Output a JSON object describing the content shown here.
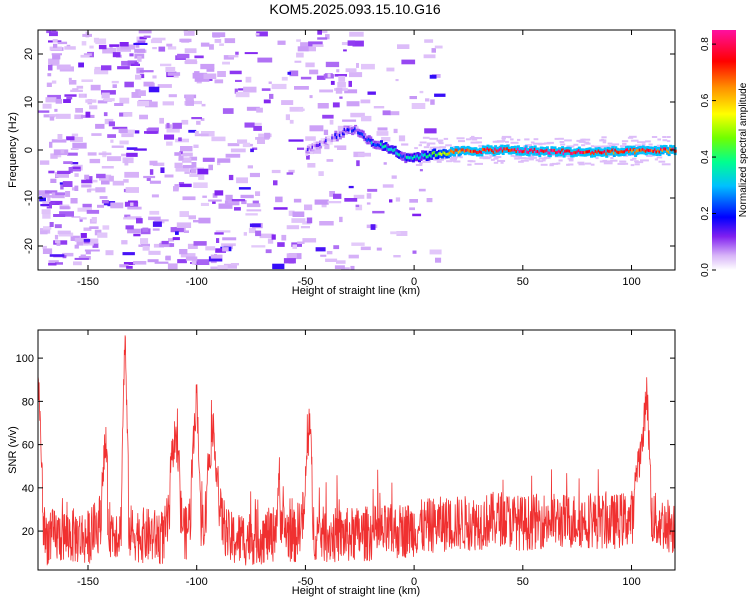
{
  "figure_title": "KOM5.2025.093.15.10.G16",
  "colors": {
    "snr_line": "#f03030",
    "frame": "#000000",
    "spectrogram_background": "#ffffff"
  },
  "chart_data": [
    {
      "type": "heatmap",
      "title": "KOM5.2025.093.15.10.G16",
      "xlabel": "Height of straight line (km)",
      "ylabel": "Frequency (Hz)",
      "xlim": [
        -173,
        120
      ],
      "ylim": [
        -25,
        25
      ],
      "x_ticks": [
        -150,
        -100,
        -50,
        0,
        50,
        100
      ],
      "x_tick_labels": [
        "-150",
        "-100",
        "-50",
        "0",
        "50",
        "100"
      ],
      "y_ticks": [
        -20,
        -10,
        0,
        10,
        20
      ],
      "y_tick_labels": [
        "-20",
        "-10",
        "0",
        "10",
        "20"
      ],
      "colorbar": {
        "label": "Normalized spectral amplitude",
        "range": [
          0.0,
          0.85
        ],
        "ticks": [
          0.0,
          0.2,
          0.4,
          0.6,
          0.8
        ],
        "tick_labels": [
          "0.0",
          "0.2",
          "0.4",
          "0.6",
          "0.8"
        ],
        "colormap": "rainbow (white → violet → blue → cyan → green → yellow → orange → red → magenta)"
      },
      "signal_track": {
        "description": "Narrow high-amplitude band near 0 Hz for heights above about -25 km; diffuse noise below",
        "points": [
          {
            "x": -50,
            "y": 0.0,
            "amplitude": 0.08
          },
          {
            "x": -40,
            "y": 2.0,
            "amplitude": 0.1
          },
          {
            "x": -30,
            "y": 4.5,
            "amplitude": 0.12
          },
          {
            "x": -25,
            "y": 3.5,
            "amplitude": 0.15
          },
          {
            "x": -20,
            "y": 1.5,
            "amplitude": 0.25
          },
          {
            "x": -10,
            "y": 0.0,
            "amplitude": 0.35
          },
          {
            "x": -5,
            "y": -1.5,
            "amplitude": 0.3
          },
          {
            "x": 0,
            "y": -1.5,
            "amplitude": 0.3
          },
          {
            "x": 10,
            "y": -0.8,
            "amplitude": 0.45
          },
          {
            "x": 20,
            "y": -0.3,
            "amplitude": 0.7
          },
          {
            "x": 40,
            "y": 0.0,
            "amplitude": 0.75
          },
          {
            "x": 60,
            "y": -0.3,
            "amplitude": 0.8
          },
          {
            "x": 80,
            "y": -0.5,
            "amplitude": 0.75
          },
          {
            "x": 100,
            "y": -0.3,
            "amplitude": 0.7
          },
          {
            "x": 120,
            "y": 0.0,
            "amplitude": 0.72
          }
        ]
      }
    },
    {
      "type": "line",
      "xlabel": "Height of straight line (km)",
      "ylabel": "SNR (v/v)",
      "xlim": [
        -173,
        120
      ],
      "ylim": [
        2,
        113
      ],
      "x_ticks": [
        -150,
        -100,
        -50,
        0,
        50,
        100
      ],
      "x_tick_labels": [
        "-150",
        "-100",
        "-50",
        "0",
        "50",
        "100"
      ],
      "y_ticks": [
        20,
        40,
        60,
        80,
        100
      ],
      "y_tick_labels": [
        "20",
        "40",
        "60",
        "80",
        "100"
      ],
      "series": [
        {
          "color": "#f03030",
          "x": [
            -173,
            -170,
            -160,
            -150,
            -145,
            -142,
            -140,
            -135,
            -133,
            -131,
            -125,
            -115,
            -110,
            -105,
            -102,
            -100,
            -98,
            -95,
            -93,
            -85,
            -75,
            -65,
            -62,
            -60,
            -55,
            -50,
            -48,
            -46,
            -40,
            -30,
            -20,
            -10,
            0,
            10,
            20,
            30,
            40,
            50,
            60,
            70,
            80,
            90,
            100,
            105,
            107,
            109,
            112,
            120
          ],
          "y": [
            95,
            20,
            22,
            20,
            32,
            60,
            28,
            25,
            112,
            25,
            22,
            20,
            65,
            22,
            50,
            85,
            30,
            48,
            62,
            18,
            20,
            22,
            48,
            28,
            20,
            45,
            70,
            25,
            22,
            22,
            24,
            25,
            28,
            32,
            33,
            34,
            38,
            33,
            36,
            35,
            36,
            34,
            38,
            60,
            86,
            40,
            34,
            30
          ]
        }
      ]
    }
  ]
}
